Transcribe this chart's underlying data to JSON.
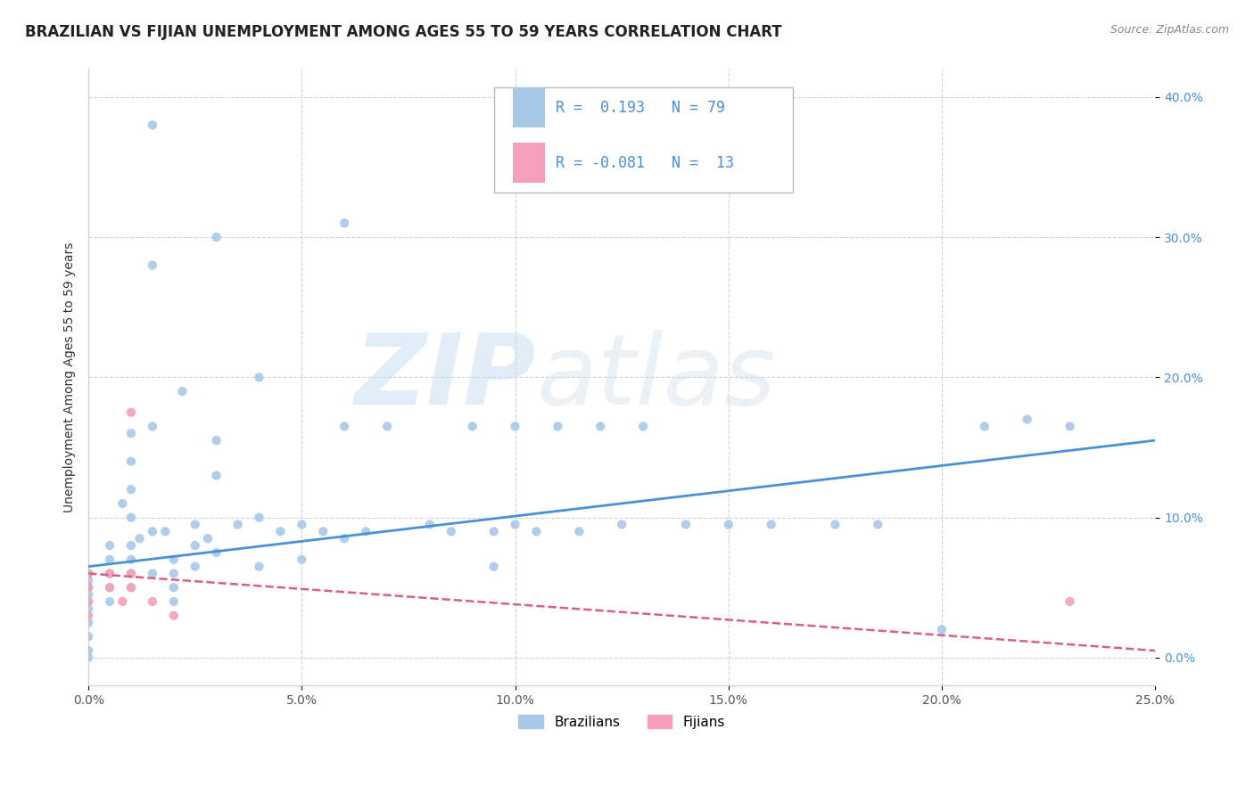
{
  "title": "BRAZILIAN VS FIJIAN UNEMPLOYMENT AMONG AGES 55 TO 59 YEARS CORRELATION CHART",
  "source_text": "Source: ZipAtlas.com",
  "ylabel": "Unemployment Among Ages 55 to 59 years",
  "xlim": [
    0.0,
    0.25
  ],
  "ylim": [
    -0.02,
    0.42
  ],
  "xticks": [
    0.0,
    0.05,
    0.1,
    0.15,
    0.2,
    0.25
  ],
  "yticks": [
    0.0,
    0.1,
    0.2,
    0.3,
    0.4
  ],
  "xtick_labels": [
    "0.0%",
    "5.0%",
    "10.0%",
    "15.0%",
    "20.0%",
    "25.0%"
  ],
  "ytick_labels": [
    "0.0%",
    "10.0%",
    "20.0%",
    "30.0%",
    "40.0%"
  ],
  "r_brazilian": 0.193,
  "n_brazilian": 79,
  "r_fijian": -0.081,
  "n_fijian": 13,
  "brazilian_color": "#a8c8e8",
  "fijian_color": "#f4a0b8",
  "trend_brazilian_color": "#4a90d9",
  "trend_fijian_color": "#d96080",
  "background_color": "#ffffff",
  "grid_color": "#c8c8c8",
  "title_fontsize": 12,
  "axis_label_fontsize": 10,
  "tick_fontsize": 10,
  "legend_fontsize": 12,
  "brazilian_x": [
    0.0,
    0.0,
    0.0,
    0.0,
    0.0,
    0.0,
    0.0,
    0.0,
    0.0,
    0.0,
    0.005,
    0.005,
    0.005,
    0.005,
    0.005,
    0.008,
    0.01,
    0.01,
    0.01,
    0.01,
    0.01,
    0.01,
    0.01,
    0.01,
    0.012,
    0.015,
    0.015,
    0.015,
    0.015,
    0.018,
    0.02,
    0.02,
    0.02,
    0.02,
    0.022,
    0.025,
    0.025,
    0.025,
    0.028,
    0.03,
    0.03,
    0.03,
    0.035,
    0.04,
    0.04,
    0.04,
    0.045,
    0.05,
    0.05,
    0.055,
    0.06,
    0.06,
    0.065,
    0.07,
    0.08,
    0.085,
    0.09,
    0.095,
    0.1,
    0.1,
    0.105,
    0.11,
    0.115,
    0.12,
    0.125,
    0.13,
    0.14,
    0.15,
    0.16,
    0.175,
    0.185,
    0.2,
    0.21,
    0.22,
    0.23,
    0.03,
    0.06,
    0.015,
    0.095
  ],
  "brazilian_y": [
    0.06,
    0.055,
    0.05,
    0.045,
    0.04,
    0.035,
    0.025,
    0.015,
    0.005,
    0.0,
    0.08,
    0.07,
    0.06,
    0.05,
    0.04,
    0.11,
    0.16,
    0.14,
    0.12,
    0.1,
    0.08,
    0.07,
    0.06,
    0.05,
    0.085,
    0.28,
    0.165,
    0.09,
    0.06,
    0.09,
    0.07,
    0.06,
    0.05,
    0.04,
    0.19,
    0.095,
    0.08,
    0.065,
    0.085,
    0.155,
    0.13,
    0.075,
    0.095,
    0.2,
    0.1,
    0.065,
    0.09,
    0.095,
    0.07,
    0.09,
    0.165,
    0.085,
    0.09,
    0.165,
    0.095,
    0.09,
    0.165,
    0.09,
    0.165,
    0.095,
    0.09,
    0.165,
    0.09,
    0.165,
    0.095,
    0.165,
    0.095,
    0.095,
    0.095,
    0.095,
    0.095,
    0.02,
    0.165,
    0.17,
    0.165,
    0.3,
    0.31,
    0.38,
    0.065
  ],
  "fijian_x": [
    0.0,
    0.0,
    0.0,
    0.0,
    0.005,
    0.005,
    0.008,
    0.01,
    0.01,
    0.01,
    0.015,
    0.02,
    0.23
  ],
  "fijian_y": [
    0.06,
    0.05,
    0.04,
    0.03,
    0.06,
    0.05,
    0.04,
    0.175,
    0.06,
    0.05,
    0.04,
    0.03,
    0.04
  ],
  "trend_braz_x0": 0.0,
  "trend_braz_x1": 0.25,
  "trend_braz_y0": 0.065,
  "trend_braz_y1": 0.155,
  "trend_fiji_x0": 0.0,
  "trend_fiji_x1": 0.25,
  "trend_fiji_y0": 0.06,
  "trend_fiji_y1": 0.005
}
